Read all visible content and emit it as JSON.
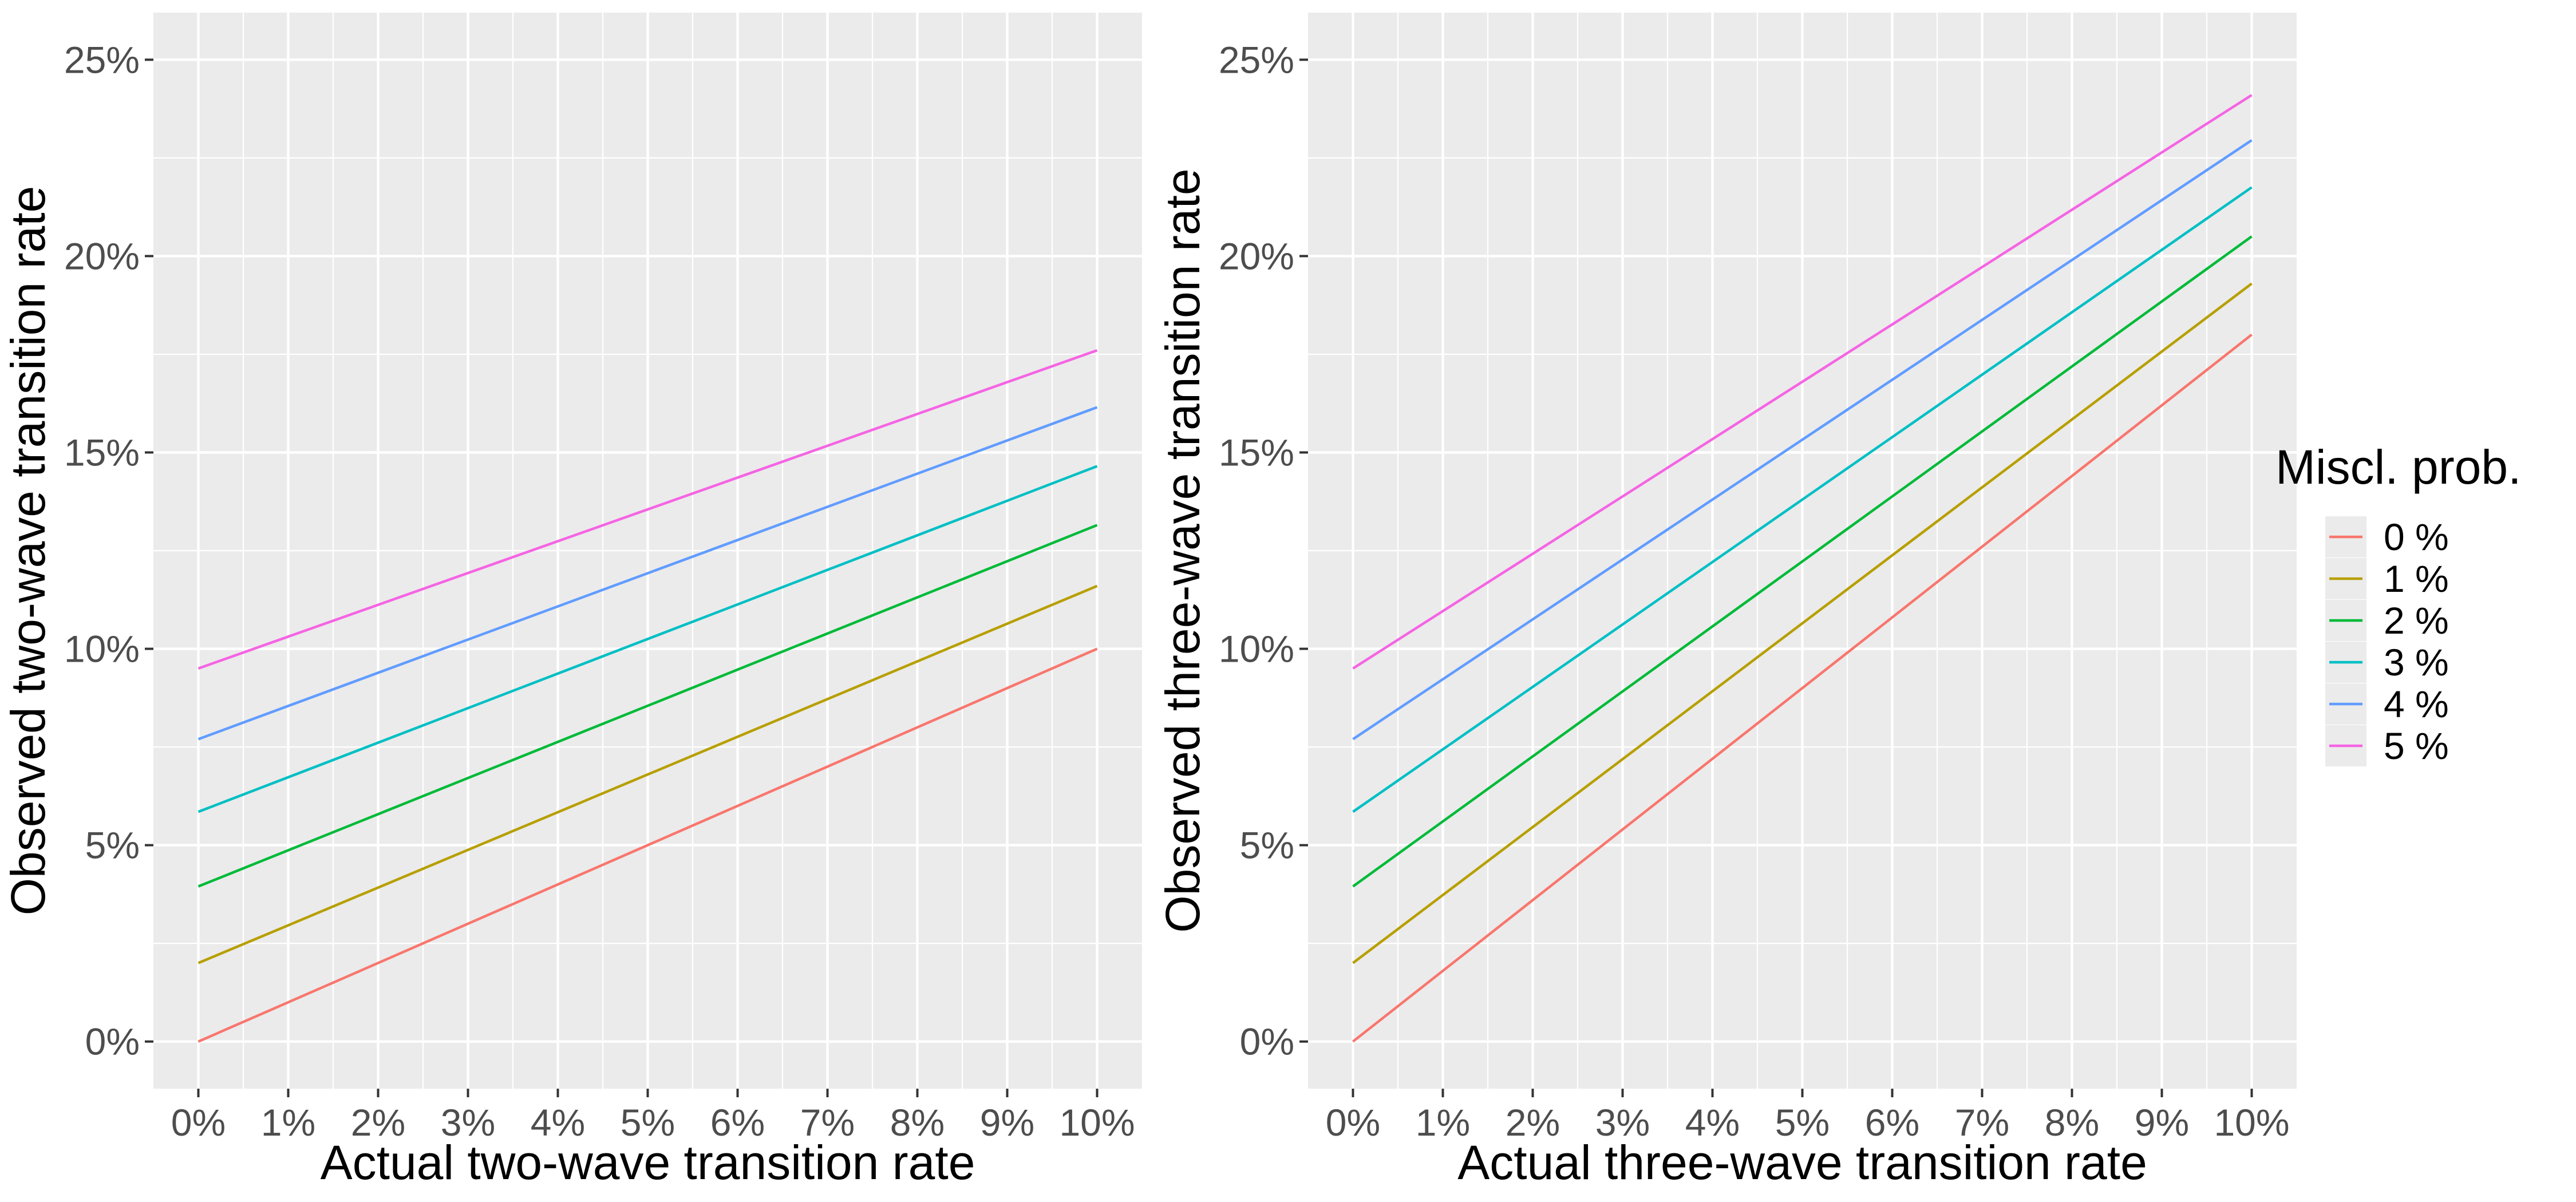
{
  "chart_data": [
    {
      "type": "line",
      "xlabel": "Actual two-wave transition rate",
      "ylabel": "Observed two-wave transition rate",
      "xlim": [
        -0.5,
        10.5
      ],
      "ylim": [
        -1.2,
        26.2
      ],
      "x_ticks": [
        0,
        1,
        2,
        3,
        4,
        5,
        6,
        7,
        8,
        9,
        10
      ],
      "x_tick_labels": [
        "0%",
        "1%",
        "2%",
        "3%",
        "4%",
        "5%",
        "6%",
        "7%",
        "8%",
        "9%",
        "10%"
      ],
      "y_ticks": [
        0,
        5,
        10,
        15,
        20,
        25
      ],
      "y_tick_labels": [
        "0%",
        "5%",
        "10%",
        "15%",
        "20%",
        "25%"
      ],
      "grid": true,
      "x": [
        0,
        10
      ],
      "series": [
        {
          "name": "0 %",
          "values": [
            0.0,
            10.0
          ],
          "color": "#F8766D"
        },
        {
          "name": "1 %",
          "values": [
            2.0,
            11.6
          ],
          "color": "#B79F00"
        },
        {
          "name": "2 %",
          "values": [
            3.95,
            13.15
          ],
          "color": "#00BA38"
        },
        {
          "name": "3 %",
          "values": [
            5.85,
            14.65
          ],
          "color": "#00BFC4"
        },
        {
          "name": "4 %",
          "values": [
            7.7,
            16.15
          ],
          "color": "#619CFF"
        },
        {
          "name": "5 %",
          "values": [
            9.5,
            17.6
          ],
          "color": "#F564E3"
        }
      ]
    },
    {
      "type": "line",
      "xlabel": "Actual three-wave transition rate",
      "ylabel": "Observed three-wave transition rate",
      "xlim": [
        -0.5,
        10.5
      ],
      "ylim": [
        -1.2,
        26.2
      ],
      "x_ticks": [
        0,
        1,
        2,
        3,
        4,
        5,
        6,
        7,
        8,
        9,
        10
      ],
      "x_tick_labels": [
        "0%",
        "1%",
        "2%",
        "3%",
        "4%",
        "5%",
        "6%",
        "7%",
        "8%",
        "9%",
        "10%"
      ],
      "y_ticks": [
        0,
        5,
        10,
        15,
        20,
        25
      ],
      "y_tick_labels": [
        "0%",
        "5%",
        "10%",
        "15%",
        "20%",
        "25%"
      ],
      "grid": true,
      "x": [
        0,
        10
      ],
      "series": [
        {
          "name": "0 %",
          "values": [
            0.0,
            18.0
          ],
          "color": "#F8766D"
        },
        {
          "name": "1 %",
          "values": [
            2.0,
            19.3
          ],
          "color": "#B79F00"
        },
        {
          "name": "2 %",
          "values": [
            3.95,
            20.5
          ],
          "color": "#00BA38"
        },
        {
          "name": "3 %",
          "values": [
            5.85,
            21.75
          ],
          "color": "#00BFC4"
        },
        {
          "name": "4 %",
          "values": [
            7.7,
            22.95
          ],
          "color": "#619CFF"
        },
        {
          "name": "5 %",
          "values": [
            9.5,
            24.1
          ],
          "color": "#F564E3"
        }
      ]
    }
  ],
  "legend": {
    "title": "Miscl. prob.",
    "placement": "right",
    "items": [
      {
        "label": "0 %",
        "color": "#F8766D"
      },
      {
        "label": "1 %",
        "color": "#B79F00"
      },
      {
        "label": "2 %",
        "color": "#00BA38"
      },
      {
        "label": "3 %",
        "color": "#00BFC4"
      },
      {
        "label": "4 %",
        "color": "#619CFF"
      },
      {
        "label": "5 %",
        "color": "#F564E3"
      }
    ]
  },
  "colors": {
    "panel_background": "#EBEBEB",
    "grid_line": "#FFFFFF",
    "tick_text": "#4D4D4D",
    "tick_mark": "#333333"
  }
}
